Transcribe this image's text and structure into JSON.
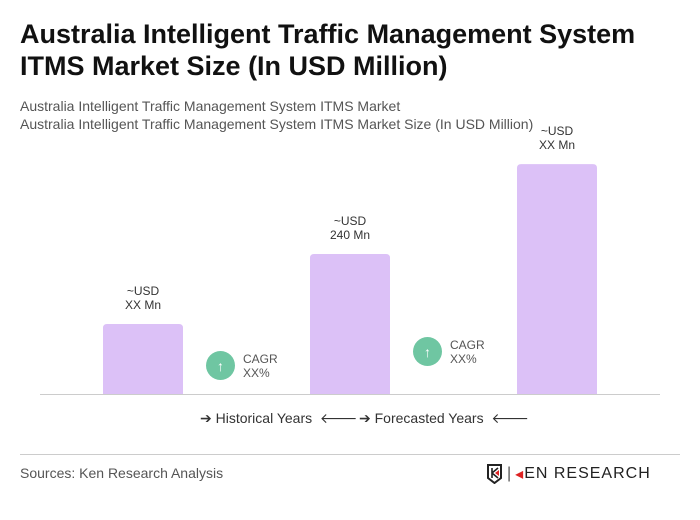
{
  "title": "Australia Intelligent Traffic Management System ITMS Market Size (In USD Million)",
  "subtitle1": "Australia Intelligent Traffic Management System ITMS Market",
  "subtitle2": "Australia Intelligent Traffic Management System ITMS Market Size (In USD Million)",
  "chart_data": {
    "type": "bar",
    "categories": [
      "",
      "",
      ""
    ],
    "values": [
      120,
      240,
      394
    ],
    "data_labels": [
      [
        "~USD",
        "XX Mn"
      ],
      [
        "~USD",
        "240 Mn"
      ],
      [
        "~USD",
        "XX Mn"
      ]
    ],
    "bar_color": "#dcc1f7",
    "cagr": [
      {
        "label": "CAGR",
        "value": "XX%"
      },
      {
        "label": "CAGR",
        "value": "XX%"
      }
    ],
    "cagr_color": "#6fc6a2",
    "legend": [
      "Historical Years",
      "Forecasted Years"
    ],
    "grid": false
  },
  "source": "Sources: Ken Research Analysis",
  "logo_text": "KEN RESEARCH"
}
